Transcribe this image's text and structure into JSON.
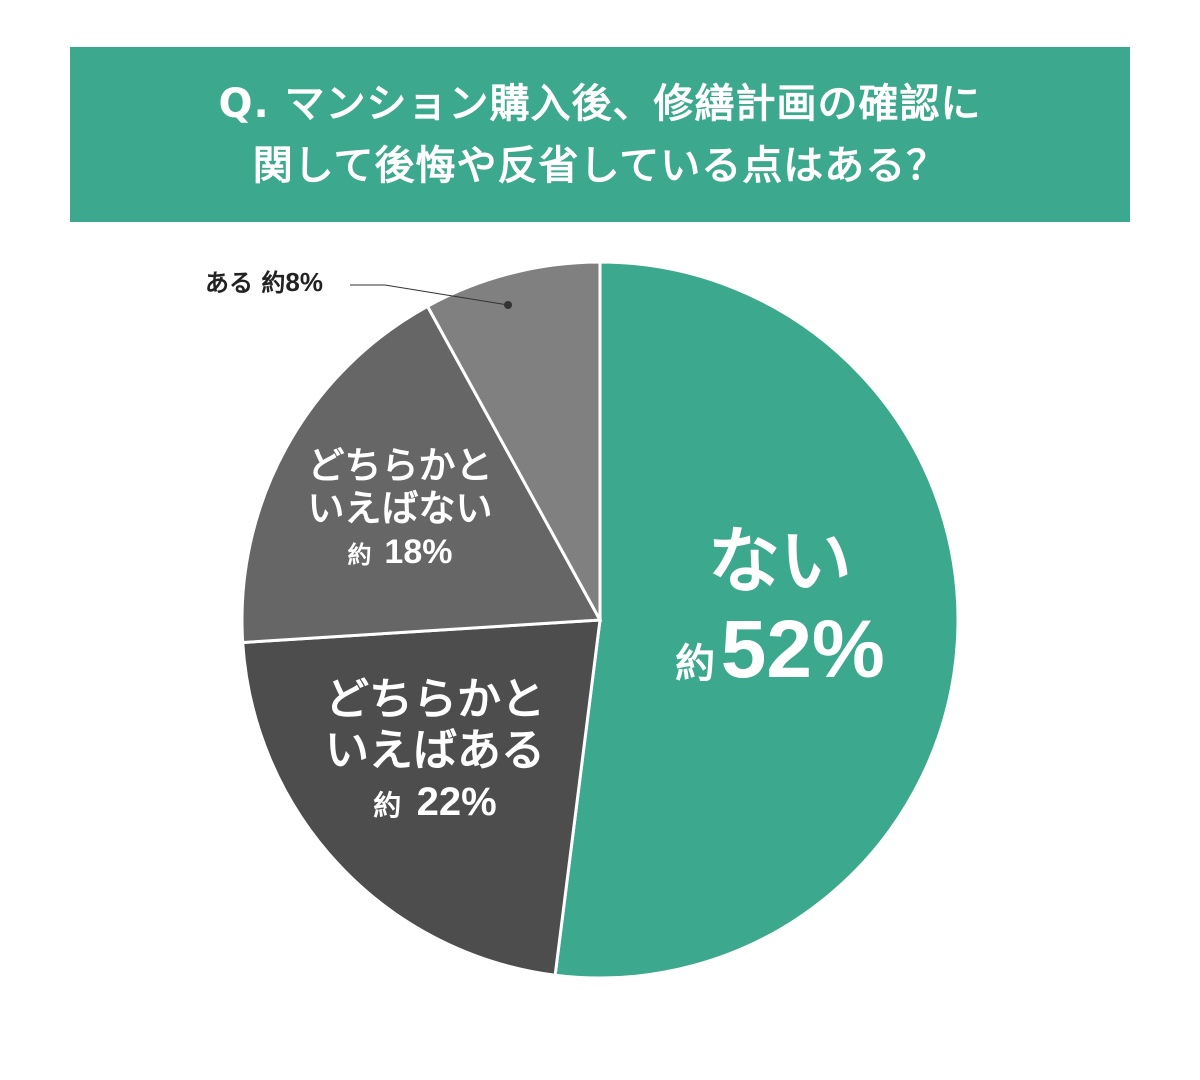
{
  "chart_data": {
    "type": "pie",
    "title": [
      "Q. マンション購入後、修繕計画の確認に",
      "関して後悔や反省している点はある？"
    ],
    "slices": [
      {
        "label": "ない",
        "value": 52,
        "value_label": "約",
        "pct": "52%",
        "color": "#3ca88e"
      },
      {
        "label": "どちらかといえばある",
        "label_lines": [
          "どちらかと",
          "いえばある"
        ],
        "value": 22,
        "value_label": "約",
        "pct": "22%",
        "color": "#4d4d4d"
      },
      {
        "label": "どちらかといえばない",
        "label_lines": [
          "どちらかと",
          "いえばない"
        ],
        "value": 18,
        "value_label": "約",
        "pct": "18%",
        "color": "#666666"
      },
      {
        "label": "ある",
        "value": 8,
        "value_label": "約",
        "pct": "8%",
        "color": "#808080"
      }
    ],
    "start": "top",
    "direction": "clockwise"
  }
}
